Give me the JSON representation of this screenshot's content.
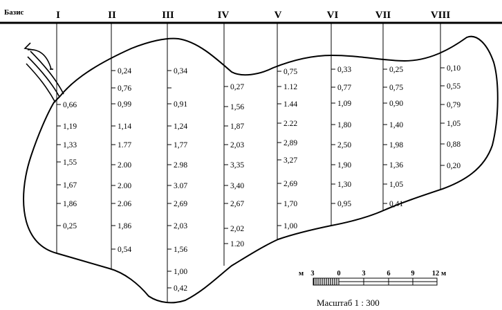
{
  "basis_label": "Базис",
  "profiles": [
    {
      "label": "I",
      "values": [
        "0,66",
        "1,19",
        "1,33",
        "1,55",
        "1,67",
        "1,86",
        "0,25"
      ]
    },
    {
      "label": "II",
      "values": [
        "0,24",
        "0,76",
        "0,99",
        "1,14",
        "1.77",
        "2.00",
        "2.00",
        "2.06",
        "1,86",
        "0,54"
      ]
    },
    {
      "label": "III",
      "values": [
        "0,34",
        "",
        "0,91",
        "1,24",
        "1,77",
        "2.98",
        "3.07",
        "2,69",
        "2,03",
        "1,56",
        "1,00",
        "0,42"
      ]
    },
    {
      "label": "IV",
      "values": [
        "0,27",
        "1,56",
        "1,87",
        "2,03",
        "3,35",
        "3,40",
        "2,67",
        "2,02",
        "1.20"
      ]
    },
    {
      "label": "V",
      "values": [
        "0,75",
        "1.12",
        "1.44",
        "2.22",
        "2,89",
        "3,27",
        "2,69",
        "1,70",
        "1,00"
      ]
    },
    {
      "label": "VI",
      "values": [
        "0,33",
        "0,77",
        "1,09",
        "1,80",
        "2,50",
        "1,90",
        "1,30",
        "0,95"
      ]
    },
    {
      "label": "VII",
      "values": [
        "0,25",
        "0,75",
        "0,90",
        "1,40",
        "1,98",
        "1,36",
        "1,05",
        "0,41"
      ]
    },
    {
      "label": "VIII",
      "values": [
        "0,10",
        "0,55",
        "0,79",
        "1,05",
        "0,88",
        "0,20"
      ]
    }
  ],
  "scale": {
    "unit_left": "м",
    "unit_right": "м",
    "ticks": [
      "3",
      "0",
      "3",
      "6",
      "9",
      "12"
    ],
    "caption": "Масштаб  1 : 300"
  }
}
